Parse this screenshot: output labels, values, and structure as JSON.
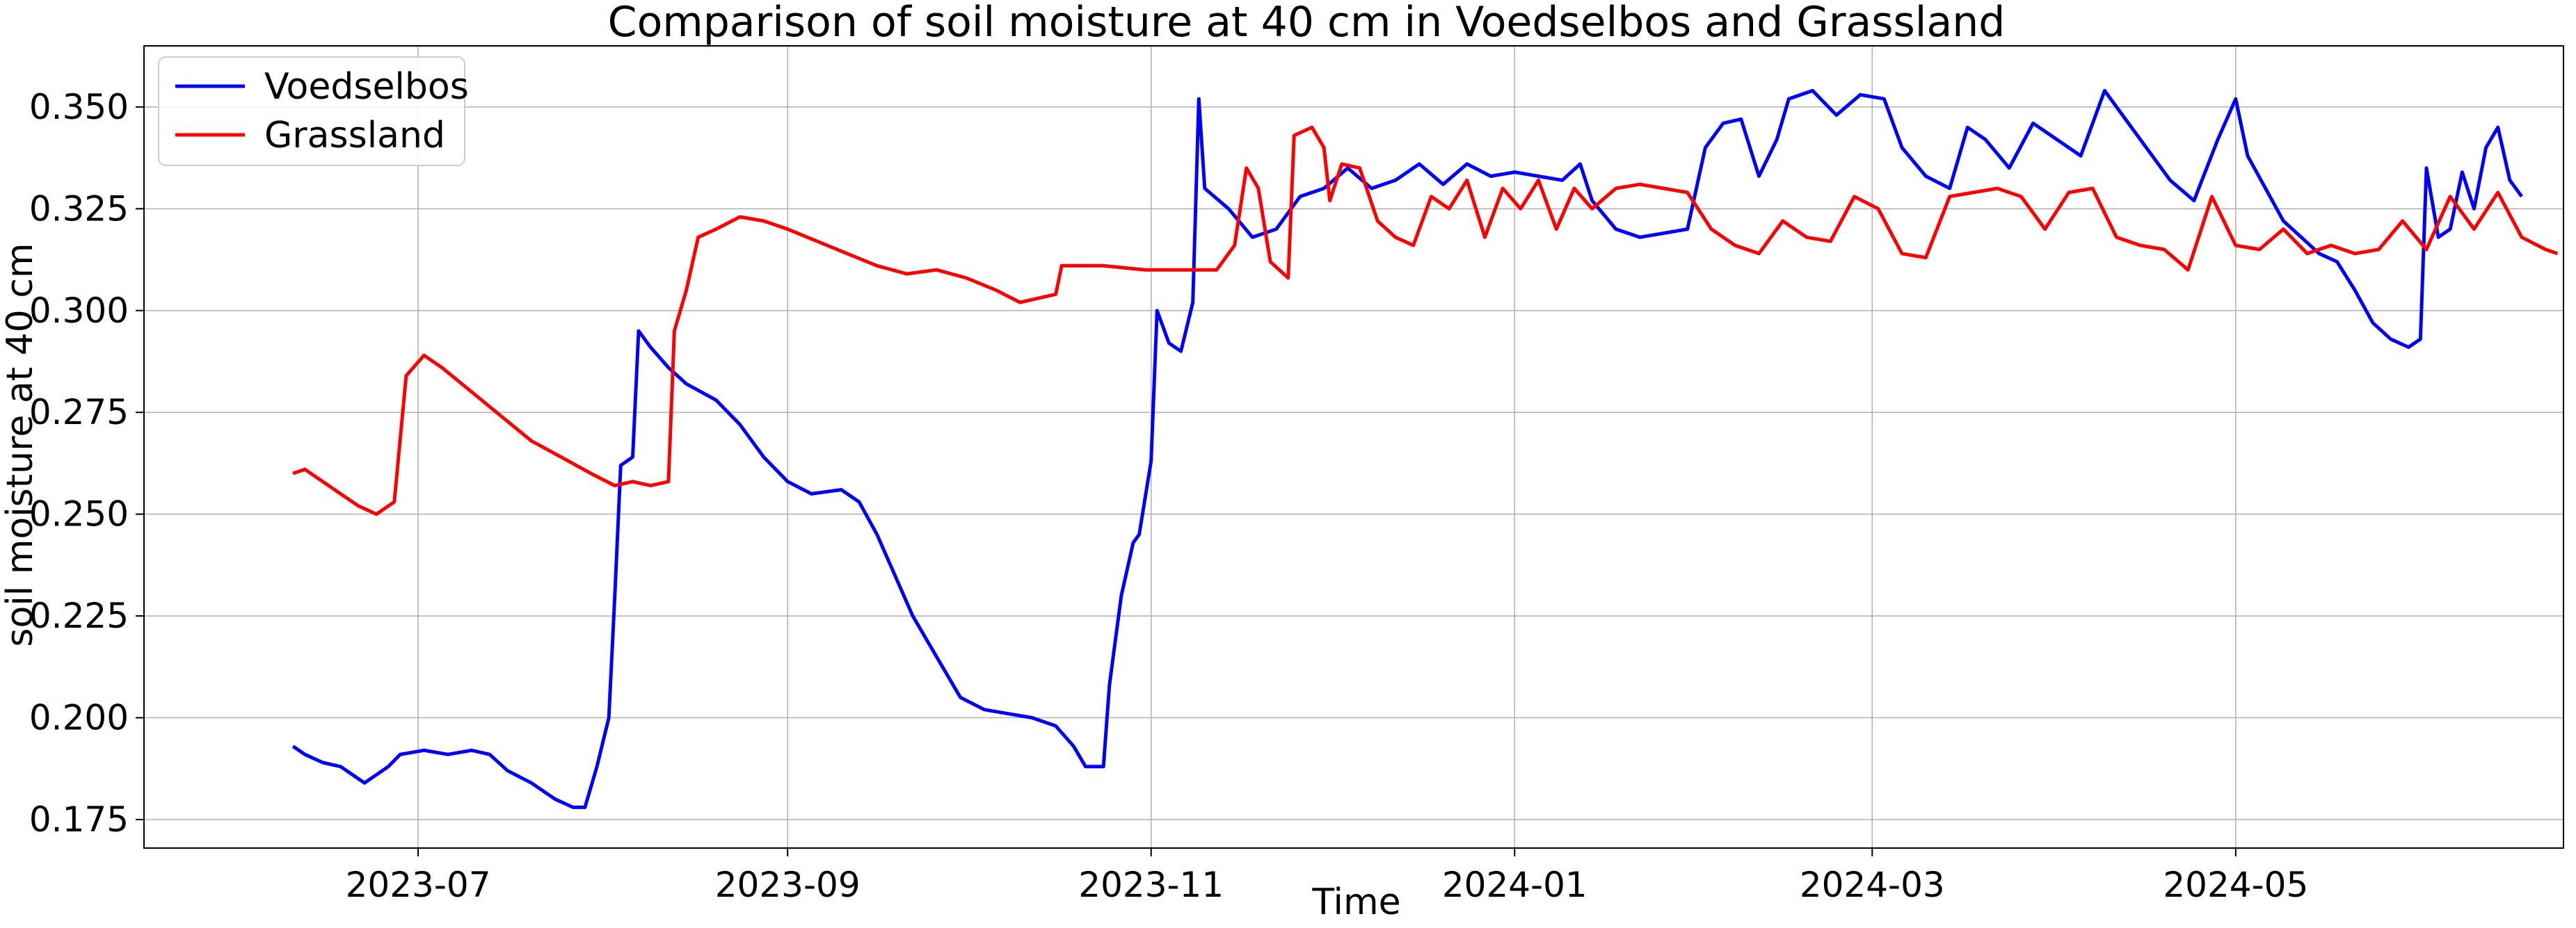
{
  "chart_data": {
    "type": "line",
    "title": "Comparison of soil moisture at 40 cm in Voedselbos and Grassland",
    "xlabel": "Time",
    "ylabel": "soil moisture at  40 cm",
    "xlim": [
      "2023-05-16",
      "2024-06-25"
    ],
    "ylim": [
      0.168,
      0.365
    ],
    "grid": true,
    "legend": "top-left",
    "x_ticks": [
      "2023-07",
      "2023-09",
      "2023-11",
      "2024-01",
      "2024-03",
      "2024-05"
    ],
    "y_ticks": [
      0.175,
      0.2,
      0.225,
      0.25,
      0.275,
      0.3,
      0.325,
      0.35
    ],
    "series": [
      {
        "name": "Voedselbos",
        "color": "#0000ff",
        "points": [
          [
            "2023-06-10",
            0.193
          ],
          [
            "2023-06-12",
            0.191
          ],
          [
            "2023-06-15",
            0.189
          ],
          [
            "2023-06-18",
            0.188
          ],
          [
            "2023-06-20",
            0.186
          ],
          [
            "2023-06-22",
            0.184
          ],
          [
            "2023-06-24",
            0.186
          ],
          [
            "2023-06-26",
            0.188
          ],
          [
            "2023-06-28",
            0.191
          ],
          [
            "2023-07-02",
            0.192
          ],
          [
            "2023-07-06",
            0.191
          ],
          [
            "2023-07-10",
            0.192
          ],
          [
            "2023-07-13",
            0.191
          ],
          [
            "2023-07-16",
            0.187
          ],
          [
            "2023-07-20",
            0.184
          ],
          [
            "2023-07-24",
            0.18
          ],
          [
            "2023-07-27",
            0.178
          ],
          [
            "2023-07-29",
            0.178
          ],
          [
            "2023-07-31",
            0.188
          ],
          [
            "2023-08-02",
            0.2
          ],
          [
            "2023-08-03",
            0.23
          ],
          [
            "2023-08-04",
            0.262
          ],
          [
            "2023-08-06",
            0.264
          ],
          [
            "2023-08-07",
            0.295
          ],
          [
            "2023-08-09",
            0.291
          ],
          [
            "2023-08-12",
            0.286
          ],
          [
            "2023-08-15",
            0.282
          ],
          [
            "2023-08-20",
            0.278
          ],
          [
            "2023-08-24",
            0.272
          ],
          [
            "2023-08-28",
            0.264
          ],
          [
            "2023-09-01",
            0.258
          ],
          [
            "2023-09-05",
            0.255
          ],
          [
            "2023-09-10",
            0.256
          ],
          [
            "2023-09-13",
            0.253
          ],
          [
            "2023-09-16",
            0.245
          ],
          [
            "2023-09-19",
            0.235
          ],
          [
            "2023-09-22",
            0.225
          ],
          [
            "2023-09-26",
            0.215
          ],
          [
            "2023-09-30",
            0.205
          ],
          [
            "2023-10-04",
            0.202
          ],
          [
            "2023-10-08",
            0.201
          ],
          [
            "2023-10-12",
            0.2
          ],
          [
            "2023-10-16",
            0.198
          ],
          [
            "2023-10-19",
            0.193
          ],
          [
            "2023-10-21",
            0.188
          ],
          [
            "2023-10-24",
            0.188
          ],
          [
            "2023-10-25",
            0.208
          ],
          [
            "2023-10-27",
            0.23
          ],
          [
            "2023-10-29",
            0.243
          ],
          [
            "2023-10-30",
            0.245
          ],
          [
            "2023-11-01",
            0.263
          ],
          [
            "2023-11-02",
            0.3
          ],
          [
            "2023-11-04",
            0.292
          ],
          [
            "2023-11-06",
            0.29
          ],
          [
            "2023-11-08",
            0.302
          ],
          [
            "2023-11-09",
            0.352
          ],
          [
            "2023-11-10",
            0.33
          ],
          [
            "2023-11-14",
            0.325
          ],
          [
            "2023-11-18",
            0.318
          ],
          [
            "2023-11-22",
            0.32
          ],
          [
            "2023-11-26",
            0.328
          ],
          [
            "2023-11-30",
            0.33
          ],
          [
            "2023-12-04",
            0.335
          ],
          [
            "2023-12-08",
            0.33
          ],
          [
            "2023-12-12",
            0.332
          ],
          [
            "2023-12-16",
            0.336
          ],
          [
            "2023-12-20",
            0.331
          ],
          [
            "2023-12-24",
            0.336
          ],
          [
            "2023-12-28",
            0.333
          ],
          [
            "2024-01-01",
            0.334
          ],
          [
            "2024-01-05",
            0.333
          ],
          [
            "2024-01-09",
            0.332
          ],
          [
            "2024-01-12",
            0.336
          ],
          [
            "2024-01-14",
            0.327
          ],
          [
            "2024-01-18",
            0.32
          ],
          [
            "2024-01-22",
            0.318
          ],
          [
            "2024-01-26",
            0.319
          ],
          [
            "2024-01-30",
            0.32
          ],
          [
            "2024-02-02",
            0.34
          ],
          [
            "2024-02-05",
            0.346
          ],
          [
            "2024-02-08",
            0.347
          ],
          [
            "2024-02-11",
            0.333
          ],
          [
            "2024-02-14",
            0.342
          ],
          [
            "2024-02-16",
            0.352
          ],
          [
            "2024-02-20",
            0.354
          ],
          [
            "2024-02-24",
            0.348
          ],
          [
            "2024-02-28",
            0.353
          ],
          [
            "2024-03-03",
            0.352
          ],
          [
            "2024-03-06",
            0.34
          ],
          [
            "2024-03-10",
            0.333
          ],
          [
            "2024-03-14",
            0.33
          ],
          [
            "2024-03-17",
            0.345
          ],
          [
            "2024-03-20",
            0.342
          ],
          [
            "2024-03-24",
            0.335
          ],
          [
            "2024-03-28",
            0.346
          ],
          [
            "2024-04-01",
            0.342
          ],
          [
            "2024-04-05",
            0.338
          ],
          [
            "2024-04-09",
            0.354
          ],
          [
            "2024-04-12",
            0.348
          ],
          [
            "2024-04-16",
            0.34
          ],
          [
            "2024-04-20",
            0.332
          ],
          [
            "2024-04-24",
            0.327
          ],
          [
            "2024-04-28",
            0.342
          ],
          [
            "2024-05-01",
            0.352
          ],
          [
            "2024-05-03",
            0.338
          ],
          [
            "2024-05-06",
            0.33
          ],
          [
            "2024-05-09",
            0.322
          ],
          [
            "2024-05-12",
            0.318
          ],
          [
            "2024-05-15",
            0.314
          ],
          [
            "2024-05-18",
            0.312
          ],
          [
            "2024-05-21",
            0.305
          ],
          [
            "2024-05-24",
            0.297
          ],
          [
            "2024-05-27",
            0.293
          ],
          [
            "2024-05-30",
            0.291
          ],
          [
            "2024-06-01",
            0.293
          ],
          [
            "2024-06-02",
            0.335
          ],
          [
            "2024-06-04",
            0.318
          ],
          [
            "2024-06-06",
            0.32
          ],
          [
            "2024-06-08",
            0.334
          ],
          [
            "2024-06-10",
            0.325
          ],
          [
            "2024-06-12",
            0.34
          ],
          [
            "2024-06-14",
            0.345
          ],
          [
            "2024-06-16",
            0.332
          ],
          [
            "2024-06-18",
            0.328
          ]
        ]
      },
      {
        "name": "Grassland",
        "color": "#ff0000",
        "points": [
          [
            "2023-06-10",
            0.26
          ],
          [
            "2023-06-12",
            0.261
          ],
          [
            "2023-06-15",
            0.258
          ],
          [
            "2023-06-18",
            0.255
          ],
          [
            "2023-06-21",
            0.252
          ],
          [
            "2023-06-24",
            0.25
          ],
          [
            "2023-06-27",
            0.253
          ],
          [
            "2023-06-29",
            0.284
          ],
          [
            "2023-07-02",
            0.289
          ],
          [
            "2023-07-05",
            0.286
          ],
          [
            "2023-07-10",
            0.28
          ],
          [
            "2023-07-15",
            0.274
          ],
          [
            "2023-07-20",
            0.268
          ],
          [
            "2023-07-25",
            0.264
          ],
          [
            "2023-07-30",
            0.26
          ],
          [
            "2023-08-03",
            0.257
          ],
          [
            "2023-08-06",
            0.258
          ],
          [
            "2023-08-09",
            0.257
          ],
          [
            "2023-08-12",
            0.258
          ],
          [
            "2023-08-13",
            0.295
          ],
          [
            "2023-08-15",
            0.305
          ],
          [
            "2023-08-17",
            0.318
          ],
          [
            "2023-08-20",
            0.32
          ],
          [
            "2023-08-24",
            0.323
          ],
          [
            "2023-08-28",
            0.322
          ],
          [
            "2023-09-01",
            0.32
          ],
          [
            "2023-09-06",
            0.317
          ],
          [
            "2023-09-11",
            0.314
          ],
          [
            "2023-09-16",
            0.311
          ],
          [
            "2023-09-21",
            0.309
          ],
          [
            "2023-09-26",
            0.31
          ],
          [
            "2023-10-01",
            0.308
          ],
          [
            "2023-10-06",
            0.305
          ],
          [
            "2023-10-10",
            0.302
          ],
          [
            "2023-10-13",
            0.303
          ],
          [
            "2023-10-16",
            0.304
          ],
          [
            "2023-10-17",
            0.311
          ],
          [
            "2023-10-24",
            0.311
          ],
          [
            "2023-10-31",
            0.31
          ],
          [
            "2023-11-07",
            0.31
          ],
          [
            "2023-11-12",
            0.31
          ],
          [
            "2023-11-15",
            0.316
          ],
          [
            "2023-11-17",
            0.335
          ],
          [
            "2023-11-19",
            0.33
          ],
          [
            "2023-11-21",
            0.312
          ],
          [
            "2023-11-24",
            0.308
          ],
          [
            "2023-11-25",
            0.343
          ],
          [
            "2023-11-28",
            0.345
          ],
          [
            "2023-11-30",
            0.34
          ],
          [
            "2023-12-01",
            0.327
          ],
          [
            "2023-12-03",
            0.336
          ],
          [
            "2023-12-06",
            0.335
          ],
          [
            "2023-12-09",
            0.322
          ],
          [
            "2023-12-12",
            0.318
          ],
          [
            "2023-12-15",
            0.316
          ],
          [
            "2023-12-18",
            0.328
          ],
          [
            "2023-12-21",
            0.325
          ],
          [
            "2023-12-24",
            0.332
          ],
          [
            "2023-12-27",
            0.318
          ],
          [
            "2023-12-30",
            0.33
          ],
          [
            "2024-01-02",
            0.325
          ],
          [
            "2024-01-05",
            0.332
          ],
          [
            "2024-01-08",
            0.32
          ],
          [
            "2024-01-11",
            0.33
          ],
          [
            "2024-01-14",
            0.325
          ],
          [
            "2024-01-18",
            0.33
          ],
          [
            "2024-01-22",
            0.331
          ],
          [
            "2024-01-26",
            0.33
          ],
          [
            "2024-01-30",
            0.329
          ],
          [
            "2024-02-03",
            0.32
          ],
          [
            "2024-02-07",
            0.316
          ],
          [
            "2024-02-11",
            0.314
          ],
          [
            "2024-02-15",
            0.322
          ],
          [
            "2024-02-19",
            0.318
          ],
          [
            "2024-02-23",
            0.317
          ],
          [
            "2024-02-27",
            0.328
          ],
          [
            "2024-03-02",
            0.325
          ],
          [
            "2024-03-06",
            0.314
          ],
          [
            "2024-03-10",
            0.313
          ],
          [
            "2024-03-14",
            0.328
          ],
          [
            "2024-03-18",
            0.329
          ],
          [
            "2024-03-22",
            0.33
          ],
          [
            "2024-03-26",
            0.328
          ],
          [
            "2024-03-30",
            0.32
          ],
          [
            "2024-04-03",
            0.329
          ],
          [
            "2024-04-07",
            0.33
          ],
          [
            "2024-04-11",
            0.318
          ],
          [
            "2024-04-15",
            0.316
          ],
          [
            "2024-04-19",
            0.315
          ],
          [
            "2024-04-23",
            0.31
          ],
          [
            "2024-04-27",
            0.328
          ],
          [
            "2024-05-01",
            0.316
          ],
          [
            "2024-05-05",
            0.315
          ],
          [
            "2024-05-09",
            0.32
          ],
          [
            "2024-05-13",
            0.314
          ],
          [
            "2024-05-17",
            0.316
          ],
          [
            "2024-05-21",
            0.314
          ],
          [
            "2024-05-25",
            0.315
          ],
          [
            "2024-05-29",
            0.322
          ],
          [
            "2024-06-02",
            0.315
          ],
          [
            "2024-06-06",
            0.328
          ],
          [
            "2024-06-10",
            0.32
          ],
          [
            "2024-06-14",
            0.329
          ],
          [
            "2024-06-18",
            0.318
          ],
          [
            "2024-06-22",
            0.315
          ],
          [
            "2024-06-24",
            0.314
          ]
        ]
      }
    ]
  }
}
